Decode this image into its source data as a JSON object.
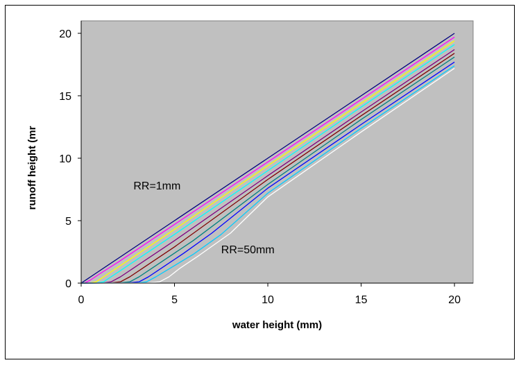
{
  "chart_data": {
    "type": "line",
    "title": "",
    "xlabel": "water height (mm)",
    "ylabel": "runoff height (mr",
    "xlim": [
      0,
      21
    ],
    "ylim": [
      0,
      21
    ],
    "xticks": [
      0,
      5,
      10,
      15,
      20
    ],
    "yticks": [
      0,
      5,
      10,
      15,
      20
    ],
    "grid": false,
    "plot_background": "#c0c0c0",
    "annotations": [
      {
        "text": "RR=1mm",
        "x": 2.8,
        "y": 7.5
      },
      {
        "text": "RR=50mm",
        "x": 7.5,
        "y": 2.4
      }
    ],
    "series": [
      {
        "color": "#000080",
        "x": [
          0,
          0.5,
          1,
          2,
          5,
          10,
          15,
          20
        ],
        "y": [
          0,
          0.5,
          1,
          2,
          5,
          10,
          15,
          20
        ]
      },
      {
        "color": "#ff00ff",
        "x": [
          0,
          0.2,
          0.5,
          1,
          2,
          5,
          10,
          15,
          20
        ],
        "y": [
          0,
          0.02,
          0.25,
          0.75,
          1.7,
          4.7,
          9.7,
          14.7,
          19.7
        ]
      },
      {
        "color": "#ffff00",
        "x": [
          0,
          0.5,
          0.8,
          1.2,
          2,
          5,
          10,
          15,
          20
        ],
        "y": [
          0,
          0.02,
          0.1,
          0.5,
          1.3,
          4.3,
          9.4,
          14.4,
          19.4
        ]
      },
      {
        "color": "#00ffff",
        "x": [
          0,
          0.8,
          1.2,
          1.6,
          2.5,
          5,
          10,
          15,
          20
        ],
        "y": [
          0,
          0.02,
          0.1,
          0.5,
          1.4,
          3.9,
          9.0,
          14.1,
          19.1
        ]
      },
      {
        "color": "#800080",
        "x": [
          0,
          1.2,
          1.6,
          2.1,
          3,
          5,
          10,
          15,
          20
        ],
        "y": [
          0,
          0.02,
          0.1,
          0.5,
          1.4,
          3.4,
          8.6,
          13.7,
          18.7
        ]
      },
      {
        "color": "#800000",
        "x": [
          0,
          1.6,
          2.1,
          2.6,
          3.5,
          5,
          10,
          15,
          20
        ],
        "y": [
          0,
          0.02,
          0.1,
          0.5,
          1.4,
          2.9,
          8.3,
          13.4,
          18.4
        ]
      },
      {
        "color": "#008080",
        "x": [
          0,
          2.0,
          2.6,
          3.1,
          4,
          5,
          6,
          10,
          15,
          20
        ],
        "y": [
          0,
          0.02,
          0.1,
          0.5,
          1.4,
          2.4,
          3.4,
          7.9,
          13.1,
          18.1
        ]
      },
      {
        "color": "#0000ff",
        "x": [
          0,
          2.5,
          3.1,
          3.6,
          4.5,
          5.5,
          7,
          10,
          15,
          20
        ],
        "y": [
          0,
          0.02,
          0.1,
          0.5,
          1.4,
          2.4,
          4.0,
          7.6,
          12.7,
          17.7
        ]
      },
      {
        "color": "#00ccff",
        "x": [
          0,
          3.0,
          3.5,
          4.0,
          5.0,
          6.0,
          7.5,
          10,
          15,
          20
        ],
        "y": [
          0,
          0.02,
          0.1,
          0.5,
          1.4,
          2.3,
          3.9,
          7.2,
          12.4,
          17.4
        ]
      },
      {
        "color": "#ffffff",
        "x": [
          0,
          3.5,
          4.2,
          4.7,
          5.3,
          6.3,
          8,
          10,
          15,
          20
        ],
        "y": [
          0,
          0.02,
          0.1,
          0.5,
          1.2,
          2.2,
          4.0,
          6.9,
          12.1,
          17.2
        ]
      }
    ]
  }
}
